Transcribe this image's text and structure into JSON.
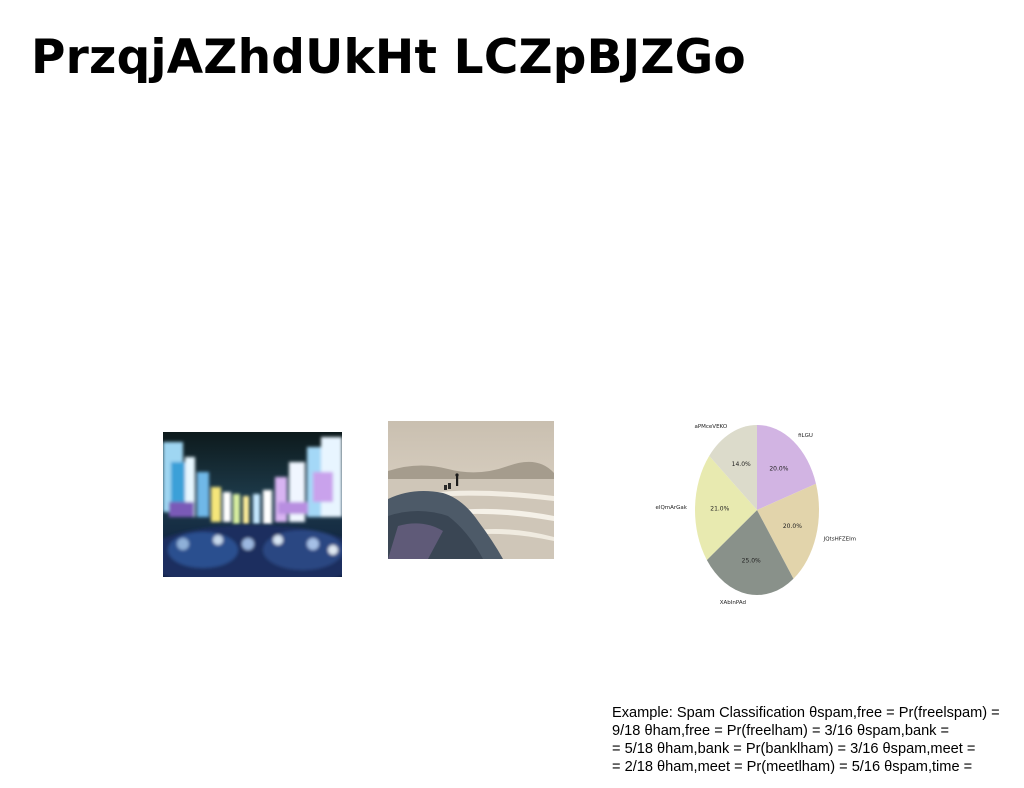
{
  "slide": {
    "title": "PrzqjAZhdUkHt LCZpBJZGo",
    "images": [
      {
        "name": "photo-city-crowd"
      },
      {
        "name": "photo-rocky-coast"
      }
    ],
    "body_lines": [
      "Example: Spam Classification θspam,free = Pr(freelspam) =",
      "9/18 θham,free = Pr(freelham) = 3/16 θspam,bank =",
      "= 5/18 θham,bank = Pr(banklham) = 3/16 θspam,meet =",
      "= 2/18 θham,meet = Pr(meetlham) = 5/16 θspam,time ="
    ]
  },
  "chart_data": {
    "type": "pie",
    "title": "",
    "slices": [
      {
        "label": "fiLGU",
        "value": 20.0,
        "display": "20.0%",
        "color": "#d2b4e3"
      },
      {
        "label": "JQtsHFZEIm",
        "value": 20.0,
        "display": "20.0%",
        "color": "#e2d4ab"
      },
      {
        "label": "XAbInPAd",
        "value": 25.0,
        "display": "25.0%",
        "color": "#89918a"
      },
      {
        "label": "elQmArGak",
        "value": 21.0,
        "display": "21.0%",
        "color": "#e8eab0"
      },
      {
        "label": "aPMceVEKO",
        "value": 14.0,
        "display": "14.0%",
        "color": "#dcdbcb"
      }
    ],
    "start": "top",
    "direction": "clockwise",
    "legend": "none"
  }
}
